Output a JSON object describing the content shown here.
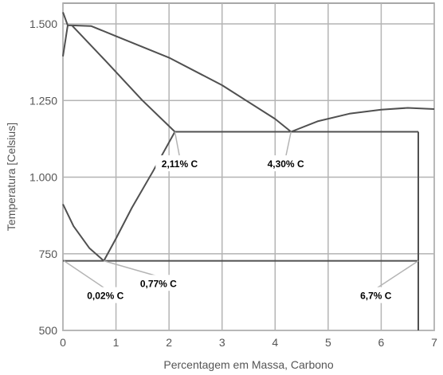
{
  "chart_data": {
    "type": "line",
    "title": "",
    "xlabel": "Percentagem em Massa, Carbono",
    "ylabel": "Temperatura [Celsius]",
    "xlim": [
      0,
      7
    ],
    "ylim": [
      500,
      1550
    ],
    "x_ticks": [
      0,
      1,
      2,
      3,
      4,
      5,
      6,
      7
    ],
    "x_tick_labels": [
      "0",
      "1",
      "2",
      "3",
      "4",
      "5",
      "6",
      "7"
    ],
    "y_ticks": [
      500,
      750,
      1000,
      1250,
      1500
    ],
    "y_tick_labels": [
      "500",
      "750",
      "1.000",
      "1.250",
      "1.500"
    ],
    "grid": true,
    "colors": {
      "curve": "#505050",
      "grid": "#b4b4b4",
      "frame": "#8c8c8c",
      "tick_text": "#555555",
      "annotation": "#000000"
    },
    "series": [
      {
        "values": [
          [
            0,
            1538
          ],
          [
            0.09,
            1495
          ],
          [
            0.17,
            1495
          ]
        ]
      },
      {
        "values": [
          [
            0,
            1394
          ],
          [
            0.09,
            1495
          ]
        ]
      },
      {
        "values": [
          [
            0.17,
            1495
          ],
          [
            0.53,
            1493
          ],
          [
            1.0,
            1460
          ],
          [
            2.0,
            1390
          ],
          [
            3.0,
            1300
          ],
          [
            4.0,
            1190
          ],
          [
            4.3,
            1148
          ]
        ]
      },
      {
        "values": [
          [
            0.17,
            1495
          ],
          [
            0.8,
            1380
          ],
          [
            1.5,
            1250
          ],
          [
            2.11,
            1148
          ]
        ]
      },
      {
        "values": [
          [
            2.11,
            1148
          ],
          [
            6.7,
            1148
          ]
        ]
      },
      {
        "values": [
          [
            4.3,
            1148
          ],
          [
            4.8,
            1182
          ],
          [
            5.4,
            1207
          ],
          [
            6.0,
            1220
          ],
          [
            6.5,
            1226
          ],
          [
            7.0,
            1222
          ]
        ]
      },
      {
        "values": [
          [
            2.11,
            1148
          ],
          [
            1.7,
            1020
          ],
          [
            1.3,
            900
          ],
          [
            1.0,
            800
          ],
          [
            0.77,
            727
          ]
        ]
      },
      {
        "values": [
          [
            0,
            912
          ],
          [
            0.2,
            840
          ],
          [
            0.5,
            768
          ],
          [
            0.77,
            727
          ]
        ]
      },
      {
        "values": [
          [
            0,
            727
          ],
          [
            6.7,
            727
          ]
        ]
      },
      {
        "values": [
          [
            6.7,
            500
          ],
          [
            6.7,
            1148
          ]
        ]
      }
    ],
    "annotations": [
      {
        "label": "2,11% C",
        "x": 2.11,
        "y": 1148,
        "tx": 2.2,
        "ty": 1040
      },
      {
        "label": "4,30% C",
        "x": 4.3,
        "y": 1148,
        "tx": 4.2,
        "ty": 1040
      },
      {
        "label": "0,02% C",
        "x": 0.02,
        "y": 727,
        "tx": 0.8,
        "ty": 610
      },
      {
        "label": "0,77% C",
        "x": 0.77,
        "y": 727,
        "tx": 1.8,
        "ty": 650
      },
      {
        "label": "6,7% C",
        "x": 6.7,
        "y": 727,
        "tx": 5.9,
        "ty": 610
      }
    ]
  }
}
